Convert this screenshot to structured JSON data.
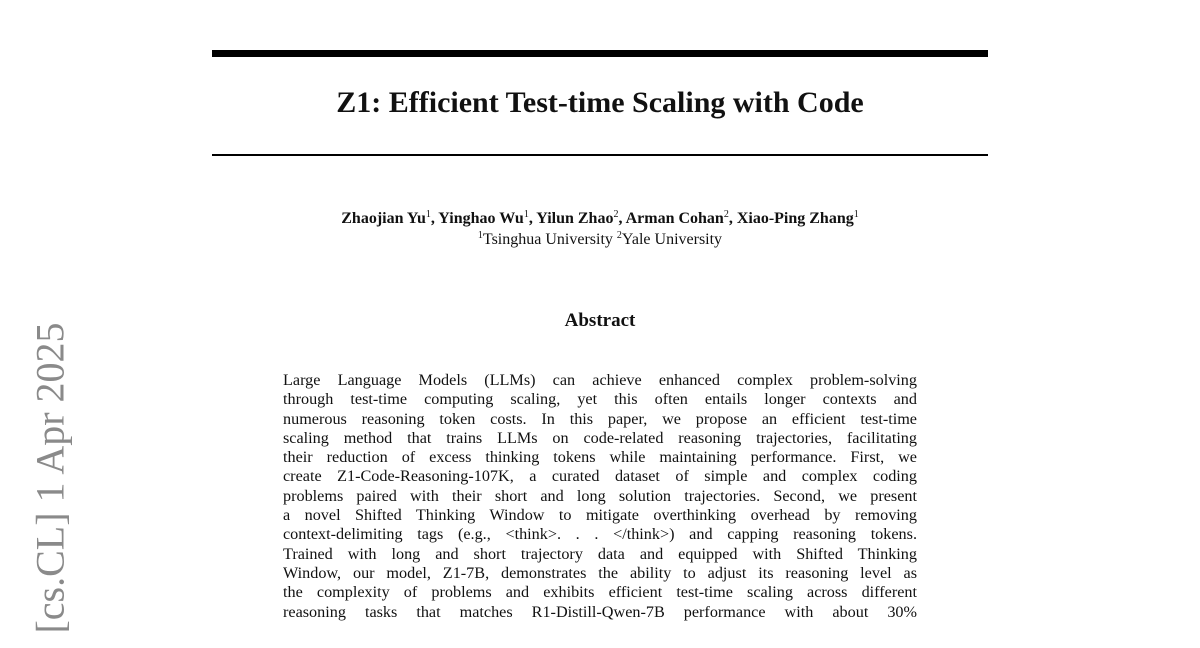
{
  "sidebar_stamp": "[cs.CL]  1 Apr 2025",
  "title": "Z1: Efficient Test-time Scaling with Code",
  "authors": [
    {
      "name": "Zhaojian Yu",
      "aff": "1"
    },
    {
      "name": "Yinghao Wu",
      "aff": "1"
    },
    {
      "name": "Yilun Zhao",
      "aff": "2"
    },
    {
      "name": "Arman Cohan",
      "aff": "2"
    },
    {
      "name": "Xiao-Ping Zhang",
      "aff": "1"
    }
  ],
  "affiliations": [
    {
      "num": "1",
      "name": "Tsinghua University"
    },
    {
      "num": "2",
      "name": "Yale University"
    }
  ],
  "abstract": {
    "heading": "Abstract",
    "lines": [
      "Large Language Models (LLMs) can achieve enhanced complex problem-solving",
      "through test-time computing scaling, yet this often entails longer contexts and",
      "numerous reasoning token costs. In this paper, we propose an efficient test-time",
      "scaling method that trains LLMs on code-related reasoning trajectories, facilitating",
      "their reduction of excess thinking tokens while maintaining performance. First, we",
      "create Z1-Code-Reasoning-107K, a curated dataset of simple and complex coding",
      "problems paired with their short and long solution trajectories. Second, we present",
      "a novel Shifted Thinking Window to mitigate overthinking overhead by removing",
      "context-delimiting tags (e.g., <think>. . . </think>) and capping reasoning tokens.",
      "Trained with long and short trajectory data and equipped with Shifted Thinking",
      "Window, our model, Z1-7B, demonstrates the ability to adjust its reasoning level as",
      "the complexity of problems and exhibits efficient test-time scaling across different",
      "reasoning tasks that matches R1-Distill-Qwen-7B performance with about 30%"
    ]
  }
}
